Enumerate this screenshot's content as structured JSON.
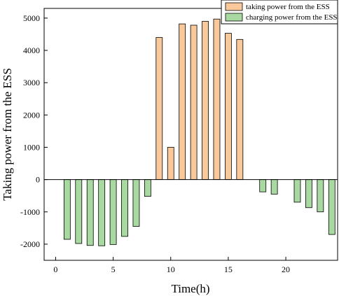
{
  "chart_data": {
    "type": "bar",
    "xlabel": "Time(h)",
    "ylabel": "Taking power from the ESS",
    "xlim": [
      -1,
      24.5
    ],
    "ylim": [
      -2500,
      5300
    ],
    "xticks": [
      0,
      5,
      10,
      15,
      20
    ],
    "yticks": [
      -2000,
      -1000,
      0,
      1000,
      2000,
      3000,
      4000,
      5000
    ],
    "grid": false,
    "legend_position": "top-right",
    "series": [
      {
        "name": "taking power from the ESS",
        "color": "#F9C89B",
        "x": [
          9,
          10,
          11,
          12,
          13,
          14,
          15,
          16
        ],
        "values": [
          4400,
          1000,
          4820,
          4780,
          4900,
          4970,
          4530,
          4340
        ]
      },
      {
        "name": "charging power from the ESS",
        "color": "#A8D9A0",
        "x": [
          1,
          2,
          3,
          4,
          5,
          6,
          7,
          8,
          18,
          19,
          21,
          22,
          23,
          24
        ],
        "values": [
          -1850,
          -1980,
          -2040,
          -2050,
          -2010,
          -1760,
          -1450,
          -520,
          -380,
          -450,
          -700,
          -870,
          -1000,
          -1700
        ]
      }
    ]
  }
}
